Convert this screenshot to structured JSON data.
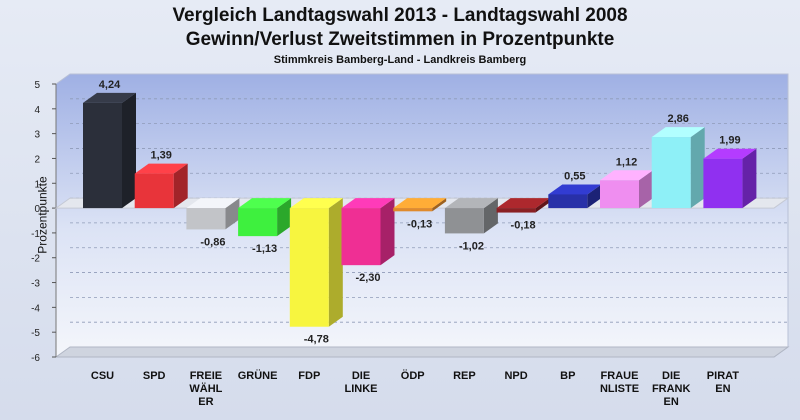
{
  "title_line1": "Vergleich Landtagswahl 2013 - Landtagswahl 2008",
  "title_line2": "Gewinn/Verlust Zweitstimmen in Prozentpunkte",
  "subtitle": "Stimmkreis Bamberg-Land - Landkreis Bamberg",
  "chart_data": {
    "type": "bar",
    "ylabel": "Prozentpunkte",
    "ylim": [
      -6,
      5
    ],
    "yticks": [
      "5",
      "4",
      "3",
      "2",
      "1",
      "0",
      "-1",
      "-2",
      "-3",
      "-4",
      "-5",
      "-6"
    ],
    "grid": true,
    "categories": [
      [
        "CSU"
      ],
      [
        "SPD"
      ],
      [
        "FREIE",
        "WÄHL",
        "ER"
      ],
      [
        "GRÜNE"
      ],
      [
        "FDP"
      ],
      [
        "DIE",
        "LINKE"
      ],
      [
        "ÖDP"
      ],
      [
        "REP"
      ],
      [
        "NPD"
      ],
      [
        "BP"
      ],
      [
        "FRAUE",
        "NLISTE"
      ],
      [
        "DIE",
        "FRANK",
        "EN"
      ],
      [
        "PIRAT",
        "EN"
      ]
    ],
    "values": [
      4.24,
      1.39,
      -0.86,
      -1.13,
      -4.78,
      -2.3,
      -0.13,
      -1.02,
      -0.18,
      0.55,
      1.12,
      2.86,
      1.99
    ],
    "labels": [
      "4,24",
      "1,39",
      "-0,86",
      "-1,13",
      "-4,78",
      "-2,30",
      "-0,13",
      "-1,02",
      "-0,18",
      "0,55",
      "1,12",
      "2,86",
      "1,99"
    ],
    "colors": [
      "#2b2f3a",
      "#e8343a",
      "#c2c4c8",
      "#3ef03e",
      "#f7f53f",
      "#ef2f94",
      "#e08a2c",
      "#8f9194",
      "#8a2024",
      "#2830a8",
      "#ef8ef0",
      "#8ef0f7",
      "#9030f0"
    ]
  }
}
